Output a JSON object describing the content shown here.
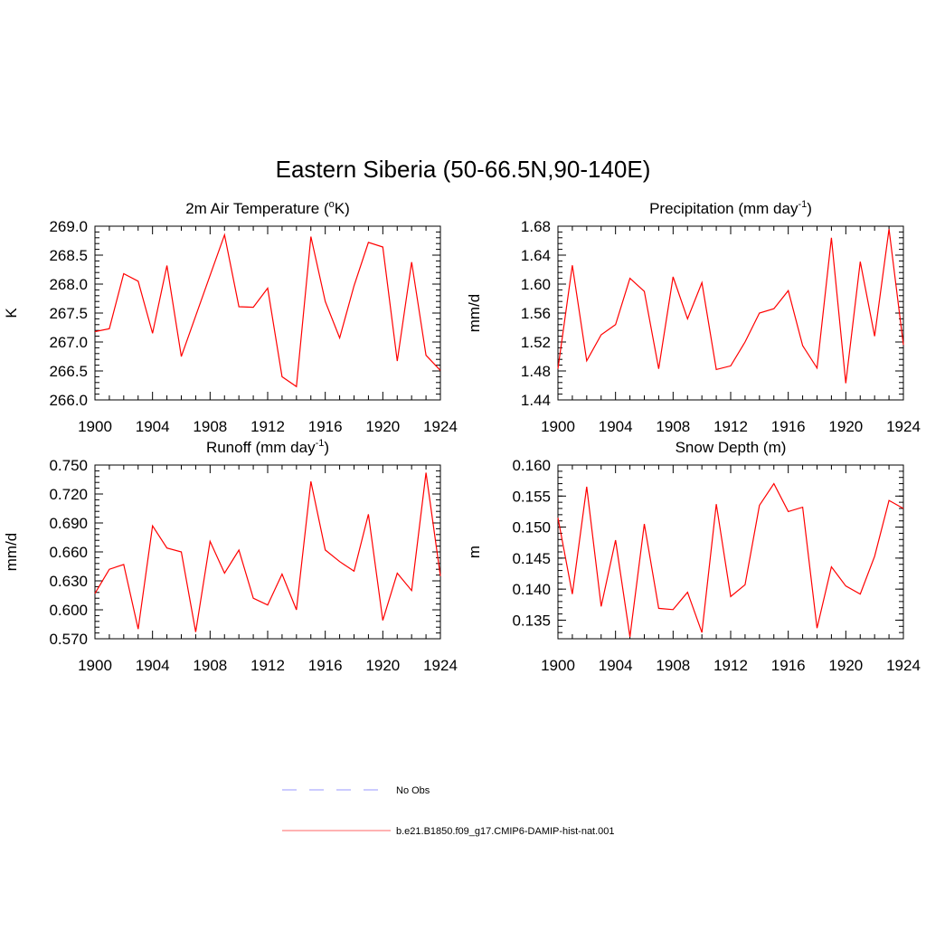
{
  "figure": {
    "title": "Eastern Siberia (50-66.5N,90-140E)"
  },
  "legend": {
    "entries": [
      {
        "label": "No Obs",
        "color": "#9999ff",
        "style": "dashed"
      },
      {
        "label": "b.e21.B1850.f09_g17.CMIP6-DAMIP-hist-nat.001",
        "color": "#ff0000",
        "style": "solid"
      }
    ]
  },
  "chart_data": [
    {
      "type": "line",
      "title_main": "2m Air Temperature (",
      "title_sup": "o",
      "title_end": "K)",
      "ylabel": "K",
      "xlim": [
        1900,
        1924
      ],
      "ylim": [
        266.0,
        269.0
      ],
      "yticks": [
        "266.0",
        "266.5",
        "267.0",
        "267.5",
        "268.0",
        "268.5",
        "269.0"
      ],
      "xticks": [
        "1900",
        "1904",
        "1908",
        "1912",
        "1916",
        "1920",
        "1924"
      ],
      "x": [
        1900,
        1901,
        1902,
        1903,
        1904,
        1905,
        1906,
        1907,
        1908,
        1909,
        1910,
        1911,
        1912,
        1913,
        1914,
        1915,
        1916,
        1917,
        1918,
        1919,
        1920,
        1921,
        1922,
        1923,
        1924
      ],
      "series": [
        {
          "name": "b.e21.B1850.f09_g17.CMIP6-DAMIP-hist-nat.001",
          "color": "#ff0000",
          "values": [
            267.18,
            267.23,
            268.18,
            268.05,
            267.15,
            268.32,
            266.75,
            267.45,
            268.15,
            268.85,
            267.61,
            267.6,
            267.93,
            266.4,
            266.23,
            268.82,
            267.7,
            267.07,
            267.97,
            268.72,
            268.64,
            266.67,
            268.38,
            266.77,
            266.51
          ]
        }
      ]
    },
    {
      "type": "line",
      "title_main": "Precipitation (mm day",
      "title_sup": "-1",
      "title_end": ")",
      "ylabel": "mm/d",
      "xlim": [
        1900,
        1924
      ],
      "ylim": [
        1.44,
        1.68
      ],
      "yticks": [
        "1.44",
        "1.48",
        "1.52",
        "1.56",
        "1.60",
        "1.64",
        "1.68"
      ],
      "xticks": [
        "1900",
        "1904",
        "1908",
        "1912",
        "1916",
        "1920",
        "1924"
      ],
      "x": [
        1900,
        1901,
        1902,
        1903,
        1904,
        1905,
        1906,
        1907,
        1908,
        1909,
        1910,
        1911,
        1912,
        1913,
        1914,
        1915,
        1916,
        1917,
        1918,
        1919,
        1920,
        1921,
        1922,
        1923,
        1924
      ],
      "series": [
        {
          "name": "b.e21.B1850.f09_g17.CMIP6-DAMIP-hist-nat.001",
          "color": "#ff0000",
          "values": [
            1.483,
            1.626,
            1.494,
            1.53,
            1.544,
            1.608,
            1.59,
            1.483,
            1.61,
            1.552,
            1.602,
            1.482,
            1.487,
            1.52,
            1.56,
            1.566,
            1.591,
            1.515,
            1.484,
            1.664,
            1.463,
            1.631,
            1.528,
            1.676,
            1.516
          ]
        }
      ]
    },
    {
      "type": "line",
      "title_main": "Runoff (mm day",
      "title_sup": "-1",
      "title_end": ")",
      "ylabel": "mm/d",
      "xlim": [
        1900,
        1924
      ],
      "ylim": [
        0.57,
        0.75
      ],
      "yticks": [
        "0.570",
        "0.600",
        "0.630",
        "0.660",
        "0.690",
        "0.720",
        "0.750"
      ],
      "xticks": [
        "1900",
        "1904",
        "1908",
        "1912",
        "1916",
        "1920",
        "1924"
      ],
      "x": [
        1900,
        1901,
        1902,
        1903,
        1904,
        1905,
        1906,
        1907,
        1908,
        1909,
        1910,
        1911,
        1912,
        1913,
        1914,
        1915,
        1916,
        1917,
        1918,
        1919,
        1920,
        1921,
        1922,
        1923,
        1924
      ],
      "series": [
        {
          "name": "b.e21.B1850.f09_g17.CMIP6-DAMIP-hist-nat.001",
          "color": "#ff0000",
          "values": [
            0.617,
            0.642,
            0.647,
            0.58,
            0.687,
            0.664,
            0.66,
            0.577,
            0.671,
            0.638,
            0.662,
            0.612,
            0.605,
            0.637,
            0.6,
            0.733,
            0.662,
            0.65,
            0.64,
            0.699,
            0.589,
            0.638,
            0.62,
            0.742,
            0.635
          ]
        }
      ]
    },
    {
      "type": "line",
      "title_main": "Snow Depth (m)",
      "title_sup": "",
      "title_end": "",
      "ylabel": "m",
      "xlim": [
        1900,
        1924
      ],
      "ylim": [
        0.132,
        0.16
      ],
      "yticks": [
        "0.135",
        "0.140",
        "0.145",
        "0.150",
        "0.155",
        "0.160"
      ],
      "xticks": [
        "1900",
        "1904",
        "1908",
        "1912",
        "1916",
        "1920",
        "1924"
      ],
      "x": [
        1900,
        1901,
        1902,
        1903,
        1904,
        1905,
        1906,
        1907,
        1908,
        1909,
        1910,
        1911,
        1912,
        1913,
        1914,
        1915,
        1916,
        1917,
        1918,
        1919,
        1920,
        1921,
        1922,
        1923,
        1924
      ],
      "series": [
        {
          "name": "b.e21.B1850.f09_g17.CMIP6-DAMIP-hist-nat.001",
          "color": "#ff0000",
          "values": [
            0.1515,
            0.1392,
            0.1565,
            0.1372,
            0.1479,
            0.1323,
            0.1505,
            0.1369,
            0.1367,
            0.1395,
            0.133,
            0.1537,
            0.1388,
            0.1407,
            0.1535,
            0.157,
            0.1525,
            0.1532,
            0.1337,
            0.1436,
            0.1405,
            0.1392,
            0.1453,
            0.1543,
            0.153
          ]
        }
      ]
    }
  ]
}
